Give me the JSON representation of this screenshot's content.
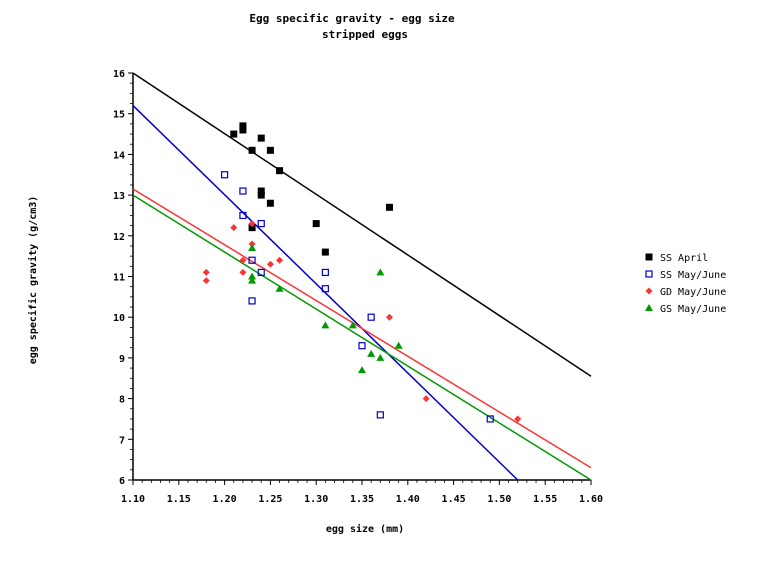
{
  "chart_data": {
    "type": "scatter",
    "title": "Egg specific gravity - egg size",
    "subtitle": "stripped eggs",
    "xlabel": "egg size (mm)",
    "ylabel": "egg specific gravity (g/cm3)",
    "xlim": [
      1.1,
      1.6
    ],
    "ylim": [
      6,
      16
    ],
    "xticks": [
      "1.10",
      "1.15",
      "1.20",
      "1.25",
      "1.30",
      "1.35",
      "1.40",
      "1.45",
      "1.50",
      "1.55",
      "1.60"
    ],
    "yticks": [
      "6",
      "7",
      "8",
      "9",
      "10",
      "11",
      "12",
      "13",
      "14",
      "15",
      "16"
    ],
    "legend_position": "right",
    "series": [
      {
        "name": "SS April",
        "color": "#000000",
        "marker": "filled-square",
        "points": [
          [
            1.21,
            14.5
          ],
          [
            1.22,
            14.6
          ],
          [
            1.22,
            14.7
          ],
          [
            1.23,
            14.1
          ],
          [
            1.24,
            14.4
          ],
          [
            1.25,
            14.1
          ],
          [
            1.26,
            13.6
          ],
          [
            1.24,
            13.1
          ],
          [
            1.24,
            13.0
          ],
          [
            1.25,
            12.8
          ],
          [
            1.23,
            12.2
          ],
          [
            1.3,
            12.3
          ],
          [
            1.31,
            11.6
          ],
          [
            1.38,
            12.7
          ]
        ],
        "fit": [
          [
            1.1,
            16.0
          ],
          [
            1.6,
            8.55
          ]
        ]
      },
      {
        "name": "SS May/June",
        "color": "#0000cc",
        "marker": "open-square",
        "points": [
          [
            1.2,
            13.5
          ],
          [
            1.22,
            13.1
          ],
          [
            1.22,
            12.5
          ],
          [
            1.24,
            12.3
          ],
          [
            1.23,
            11.4
          ],
          [
            1.24,
            11.1
          ],
          [
            1.23,
            10.4
          ],
          [
            1.31,
            11.1
          ],
          [
            1.31,
            10.7
          ],
          [
            1.36,
            10.0
          ],
          [
            1.35,
            9.3
          ],
          [
            1.37,
            7.6
          ],
          [
            1.49,
            7.5
          ]
        ],
        "fit": [
          [
            1.1,
            15.2
          ],
          [
            1.52,
            6.0
          ]
        ]
      },
      {
        "name": "GD May/June",
        "color": "#ff3333",
        "marker": "diamond",
        "points": [
          [
            1.18,
            11.1
          ],
          [
            1.18,
            10.9
          ],
          [
            1.21,
            12.2
          ],
          [
            1.22,
            11.4
          ],
          [
            1.22,
            11.1
          ],
          [
            1.23,
            12.3
          ],
          [
            1.23,
            11.8
          ],
          [
            1.25,
            11.3
          ],
          [
            1.26,
            11.4
          ],
          [
            1.38,
            10.0
          ],
          [
            1.42,
            8.0
          ],
          [
            1.52,
            7.5
          ]
        ],
        "fit": [
          [
            1.1,
            13.15
          ],
          [
            1.6,
            6.3
          ]
        ]
      },
      {
        "name": "GS May/June",
        "color": "#009900",
        "marker": "triangle",
        "points": [
          [
            1.23,
            11.7
          ],
          [
            1.23,
            11.0
          ],
          [
            1.23,
            10.9
          ],
          [
            1.26,
            10.7
          ],
          [
            1.31,
            9.8
          ],
          [
            1.34,
            9.8
          ],
          [
            1.36,
            9.1
          ],
          [
            1.35,
            8.7
          ],
          [
            1.37,
            9.0
          ],
          [
            1.37,
            11.1
          ],
          [
            1.39,
            9.3
          ]
        ],
        "fit": [
          [
            1.1,
            13.0
          ],
          [
            1.6,
            6.0
          ]
        ]
      }
    ]
  }
}
